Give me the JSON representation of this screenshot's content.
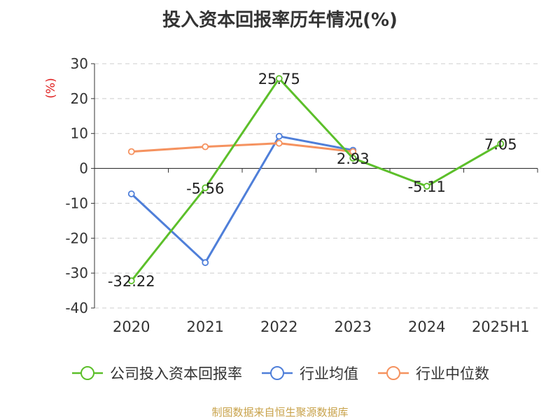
{
  "title": "投入资本回报率历年情况(%)",
  "source": "制图数据来自恒生聚源数据库",
  "chart_data": {
    "type": "line",
    "title": "投入资本回报率历年情况(%)",
    "ylabel": "(%)",
    "xlabel": "",
    "categories": [
      "2020",
      "2021",
      "2022",
      "2023",
      "2024",
      "2025H1"
    ],
    "ylim": [
      -40,
      30
    ],
    "yticks": [
      30,
      20,
      10,
      0,
      -10,
      -20,
      -30,
      -40
    ],
    "grid": true,
    "legend_position": "bottom",
    "series": [
      {
        "name": "公司投入资本回报率",
        "color": "#5cbf2a",
        "values": [
          -32.22,
          -5.56,
          25.75,
          2.93,
          -5.11,
          7.05
        ],
        "labels": [
          "-32.22",
          "-5.56",
          "25.75",
          "2.93",
          "-5.11",
          "7.05"
        ]
      },
      {
        "name": "行业均值",
        "color": "#4f7fd9",
        "values": [
          -7.3,
          -27.0,
          9.2,
          5.2,
          null,
          null
        ]
      },
      {
        "name": "行业中位数",
        "color": "#f5925f",
        "values": [
          4.8,
          6.2,
          7.2,
          4.8,
          null,
          null
        ]
      }
    ]
  }
}
